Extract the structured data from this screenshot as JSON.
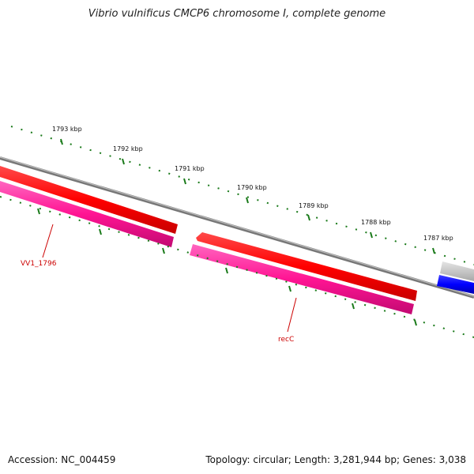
{
  "map": {
    "title": "Vibrio vulnificus CMCP6 chromosome I, complete genome",
    "accession_label": "Accession: NC_004459",
    "summary_label": "Topology: circular; Length: 3,281,944 bp; Genes: 3,038"
  },
  "colors": {
    "ruler_ticks": "#1a7a1a",
    "backbone": "#888888",
    "forward_gene": "#ff0000",
    "reverse_gene": "#ff1493",
    "other_gene": "#0000ff",
    "label_text": "#cc0000"
  },
  "ruler": {
    "labels": [
      "1793 kbp",
      "1792 kbp",
      "1791 kbp",
      "1790 kbp",
      "1789 kbp",
      "1788 kbp",
      "1787 kbp"
    ]
  },
  "genes": [
    {
      "label": "VV1_1796"
    },
    {
      "label": "recC"
    }
  ]
}
